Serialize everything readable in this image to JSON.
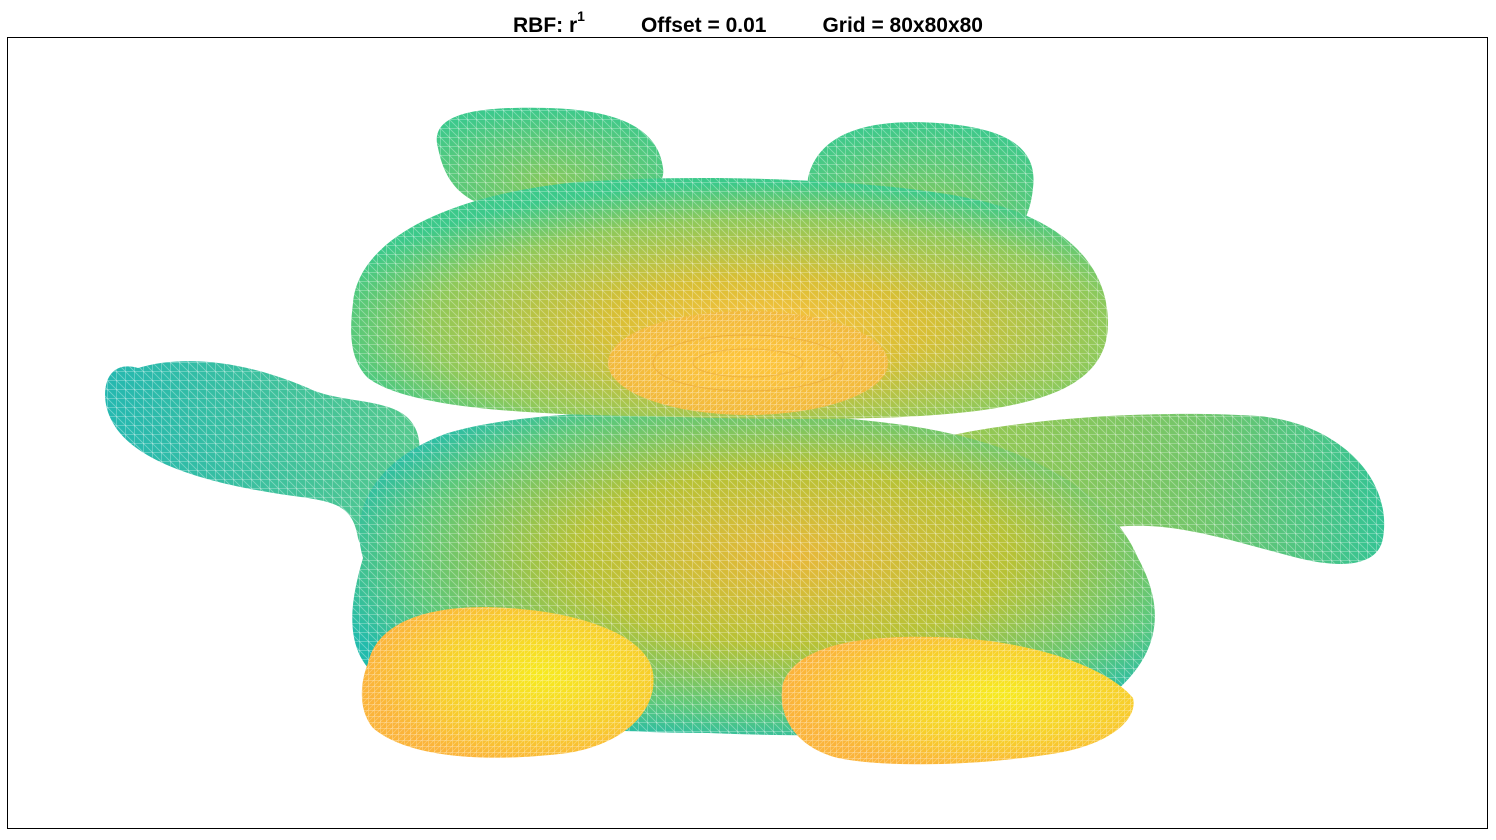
{
  "title": {
    "rbf_prefix": "RBF: r",
    "rbf_exponent": "1",
    "offset": "Offset = 0.01",
    "grid": "Grid = 80x80x80"
  },
  "colors": {
    "teal": "#1fb8b4",
    "green": "#3cc98a",
    "yellow_green": "#a7c93c",
    "orange": "#fdb43a",
    "yellow": "#f5e620",
    "frame": "#000000"
  },
  "mesh": {
    "colormap": "parula",
    "style": "wireframe"
  }
}
